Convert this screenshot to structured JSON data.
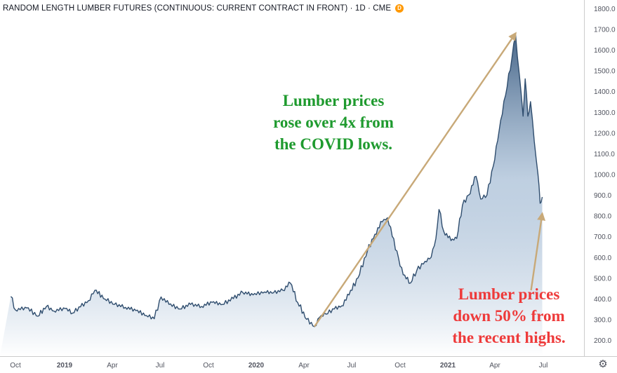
{
  "header": {
    "title": "RANDOM LENGTH LUMBER FUTURES (CONTINUOUS: CURRENT CONTRACT IN FRONT) · 1D · CME",
    "badge": "D"
  },
  "annotations": {
    "rise": "Lumber prices\nrose over 4x from\nthe COVID lows.",
    "fall": "Lumber prices\ndown 50% from\nthe recent highs."
  },
  "icons": {
    "settings": "gear-icon"
  },
  "colors": {
    "line": "#2f4d6e",
    "fill_top": "#3e5e82",
    "fill_bottom": "#ffffff",
    "arrow": "#c8a978",
    "rise_text": "#1e9a2e",
    "fall_text": "#ee3a3a"
  },
  "chart_data": {
    "type": "area",
    "x_ticks": [
      "Oct",
      "2019",
      "Apr",
      "Jul",
      "Oct",
      "2020",
      "Apr",
      "Jul",
      "Oct",
      "2021",
      "Apr",
      "Jul"
    ],
    "y_ticks": [
      "200.0",
      "300.0",
      "400.0",
      "500.0",
      "600.0",
      "700.0",
      "800.0",
      "900.0",
      "1000.0",
      "1100.0",
      "1200.0",
      "1300.0",
      "1400.0",
      "1500.0",
      "1600.0",
      "1700.0",
      "1800.0"
    ],
    "ylim": [
      150,
      1850
    ],
    "series": [
      {
        "points": [
          [
            "2018-09-17",
            410
          ],
          [
            "2018-10-01",
            345
          ],
          [
            "2018-10-22",
            355
          ],
          [
            "2018-11-12",
            315
          ],
          [
            "2018-11-28",
            362
          ],
          [
            "2018-12-12",
            340
          ],
          [
            "2019-01-02",
            352
          ],
          [
            "2019-01-16",
            330
          ],
          [
            "2019-01-31",
            360
          ],
          [
            "2019-02-15",
            390
          ],
          [
            "2019-02-27",
            440
          ],
          [
            "2019-03-18",
            398
          ],
          [
            "2019-04-05",
            372
          ],
          [
            "2019-04-26",
            358
          ],
          [
            "2019-05-16",
            342
          ],
          [
            "2019-06-05",
            318
          ],
          [
            "2019-06-20",
            303
          ],
          [
            "2019-07-03",
            408
          ],
          [
            "2019-07-18",
            372
          ],
          [
            "2019-08-08",
            350
          ],
          [
            "2019-08-28",
            372
          ],
          [
            "2019-09-18",
            362
          ],
          [
            "2019-10-08",
            382
          ],
          [
            "2019-10-28",
            372
          ],
          [
            "2019-11-18",
            400
          ],
          [
            "2019-12-06",
            430
          ],
          [
            "2019-12-26",
            418
          ],
          [
            "2020-01-17",
            432
          ],
          [
            "2020-02-03",
            428
          ],
          [
            "2020-02-21",
            440
          ],
          [
            "2020-03-06",
            475
          ],
          [
            "2020-03-20",
            382
          ],
          [
            "2020-04-06",
            300
          ],
          [
            "2020-04-21",
            265
          ],
          [
            "2020-05-01",
            310
          ],
          [
            "2020-05-13",
            325
          ],
          [
            "2020-05-29",
            350
          ],
          [
            "2020-06-12",
            365
          ],
          [
            "2020-06-26",
            418
          ],
          [
            "2020-07-13",
            500
          ],
          [
            "2020-07-31",
            630
          ],
          [
            "2020-08-14",
            710
          ],
          [
            "2020-08-28",
            770
          ],
          [
            "2020-09-07",
            790
          ],
          [
            "2020-09-16",
            700
          ],
          [
            "2020-09-28",
            595
          ],
          [
            "2020-10-07",
            515
          ],
          [
            "2020-10-21",
            475
          ],
          [
            "2020-11-02",
            535
          ],
          [
            "2020-11-18",
            580
          ],
          [
            "2020-11-30",
            600
          ],
          [
            "2020-12-09",
            690
          ],
          [
            "2020-12-15",
            830
          ],
          [
            "2020-12-24",
            725
          ],
          [
            "2021-01-07",
            680
          ],
          [
            "2021-01-18",
            690
          ],
          [
            "2021-01-29",
            850
          ],
          [
            "2021-02-10",
            900
          ],
          [
            "2021-02-24",
            990
          ],
          [
            "2021-03-05",
            880
          ],
          [
            "2021-03-17",
            900
          ],
          [
            "2021-03-29",
            1040
          ],
          [
            "2021-04-09",
            1210
          ],
          [
            "2021-04-21",
            1380
          ],
          [
            "2021-05-03",
            1560
          ],
          [
            "2021-05-10",
            1670
          ],
          [
            "2021-05-17",
            1480
          ],
          [
            "2021-05-24",
            1280
          ],
          [
            "2021-05-28",
            1460
          ],
          [
            "2021-06-02",
            1280
          ],
          [
            "2021-06-07",
            1350
          ],
          [
            "2021-06-14",
            1160
          ],
          [
            "2021-06-21",
            1000
          ],
          [
            "2021-06-25",
            860
          ],
          [
            "2021-06-29",
            890
          ]
        ]
      }
    ],
    "annotation_arrows": [
      {
        "from": [
          "2020-04-21",
          265
        ],
        "to": [
          "2021-05-10",
          1680
        ]
      },
      {
        "from": [
          "2021-06-08",
          440
        ],
        "to": [
          "2021-06-29",
          810
        ]
      }
    ],
    "grid": false,
    "legend": "none"
  }
}
